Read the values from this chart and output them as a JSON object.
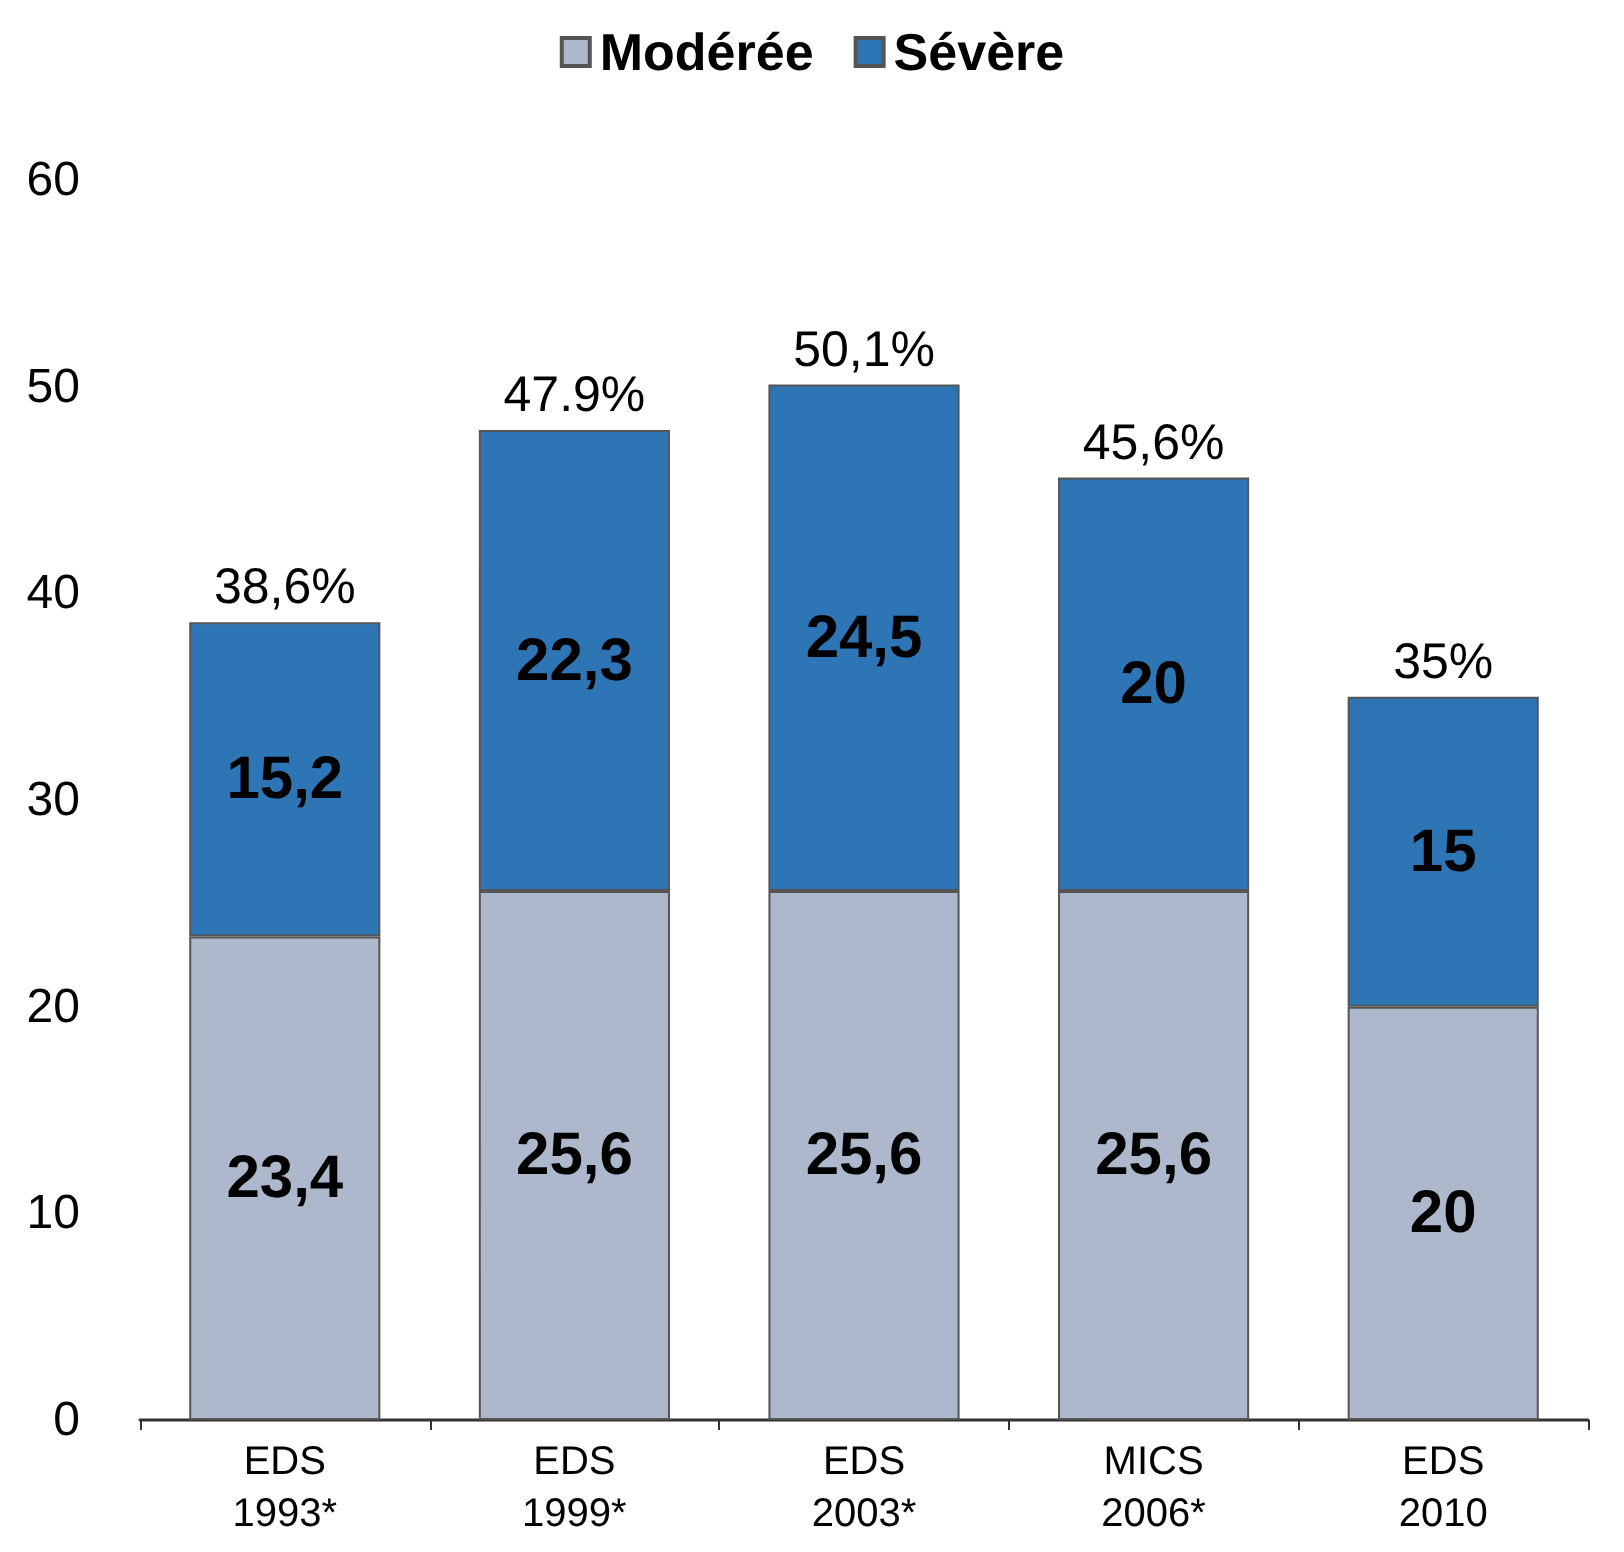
{
  "chart_data": {
    "type": "bar",
    "stacked": true,
    "categories": [
      "EDS\n1993*",
      "EDS\n1999*",
      "EDS\n2003*",
      "MICS\n2006*",
      "EDS\n2010"
    ],
    "series": [
      {
        "name": "Modérée",
        "color": "#aeb8cc",
        "values": [
          23.4,
          25.6,
          25.6,
          25.6,
          20
        ],
        "value_labels": [
          "23,4",
          "25,6",
          "25,6",
          "25,6",
          "20"
        ]
      },
      {
        "name": "Sévère",
        "color": "#2e75b6",
        "values": [
          15.2,
          22.3,
          24.5,
          20,
          15
        ],
        "value_labels": [
          "15,2",
          "22,3",
          "24,5",
          "20",
          "15"
        ]
      }
    ],
    "totals": [
      "38,6%",
      "47.9%",
      "50,1%",
      "45,6%",
      "35%"
    ],
    "ylim": [
      0,
      60
    ],
    "yticks": [
      0,
      10,
      20,
      30,
      40,
      50,
      60
    ],
    "grid": false,
    "legend": "top"
  }
}
